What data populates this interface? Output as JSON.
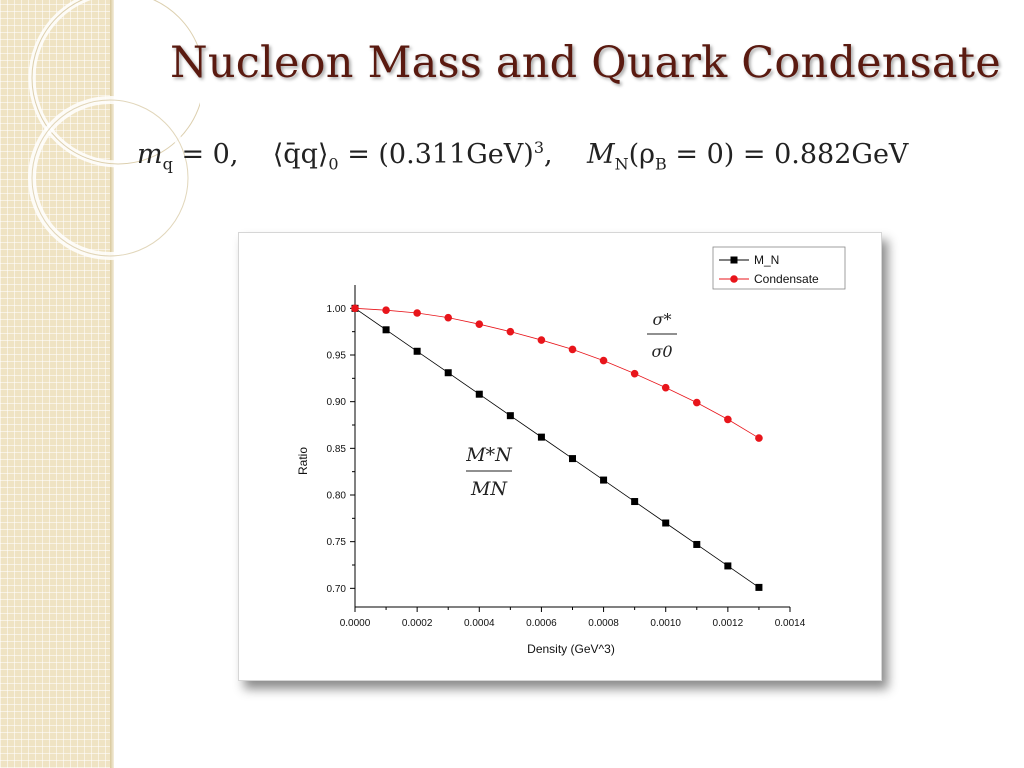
{
  "slide": {
    "title": "Nucleon Mass and Quark Condensate",
    "formula": {
      "mq_lhs": "m",
      "mq_sub": "q",
      "mq_rhs": "= 0,",
      "cond_lhs": "⟨q̄q⟩",
      "cond_sub": "0",
      "cond_rhs": "= (0.311GeV)",
      "cond_sup": "3",
      "cond_tail": ",",
      "mn_lhs": "M",
      "mn_sub": "N",
      "mn_arg": "(ρ",
      "mn_arg_sub": "B",
      "mn_rhs": "= 0) = 0.882GeV"
    },
    "colors": {
      "title": "#5a1a10",
      "sidebar": "#efe3c3"
    }
  },
  "chart_data": {
    "type": "scatter",
    "xlabel": "Density (GeV^3)",
    "ylabel": "Ratio",
    "xlim": [
      0,
      0.0014
    ],
    "ylim": [
      0.68,
      1.025
    ],
    "x_ticks": [
      "0.0000",
      "0.0002",
      "0.0004",
      "0.0006",
      "0.0008",
      "0.0010",
      "0.0012",
      "0.0014"
    ],
    "x_tick_values": [
      0,
      0.0002,
      0.0004,
      0.0006,
      0.0008,
      0.001,
      0.0012,
      0.0014
    ],
    "y_ticks": [
      "0.70",
      "0.75",
      "0.80",
      "0.85",
      "0.90",
      "0.95",
      "1.00"
    ],
    "y_tick_values": [
      0.7,
      0.75,
      0.8,
      0.85,
      0.9,
      0.95,
      1.0
    ],
    "grid": false,
    "legend_position": "top-right",
    "x": [
      0,
      0.0001,
      0.0002,
      0.0003,
      0.0004,
      0.0005,
      0.0006,
      0.0007,
      0.0008,
      0.0009,
      0.001,
      0.0011,
      0.0012,
      0.0013
    ],
    "series": [
      {
        "name": "M_N",
        "marker": "square",
        "color": "#000000",
        "values": [
          1.0,
          0.977,
          0.954,
          0.931,
          0.908,
          0.885,
          0.862,
          0.839,
          0.816,
          0.793,
          0.77,
          0.747,
          0.724,
          0.701
        ]
      },
      {
        "name": "Condensate",
        "marker": "circle",
        "color": "#e8151b",
        "values": [
          1.0,
          0.998,
          0.995,
          0.99,
          0.983,
          0.975,
          0.966,
          0.956,
          0.944,
          0.93,
          0.915,
          0.899,
          0.881,
          0.861
        ]
      }
    ],
    "annotations": {
      "condensate_num": "σ*",
      "condensate_den": "σ0",
      "mass_num": "M*N",
      "mass_den": "MN"
    }
  }
}
